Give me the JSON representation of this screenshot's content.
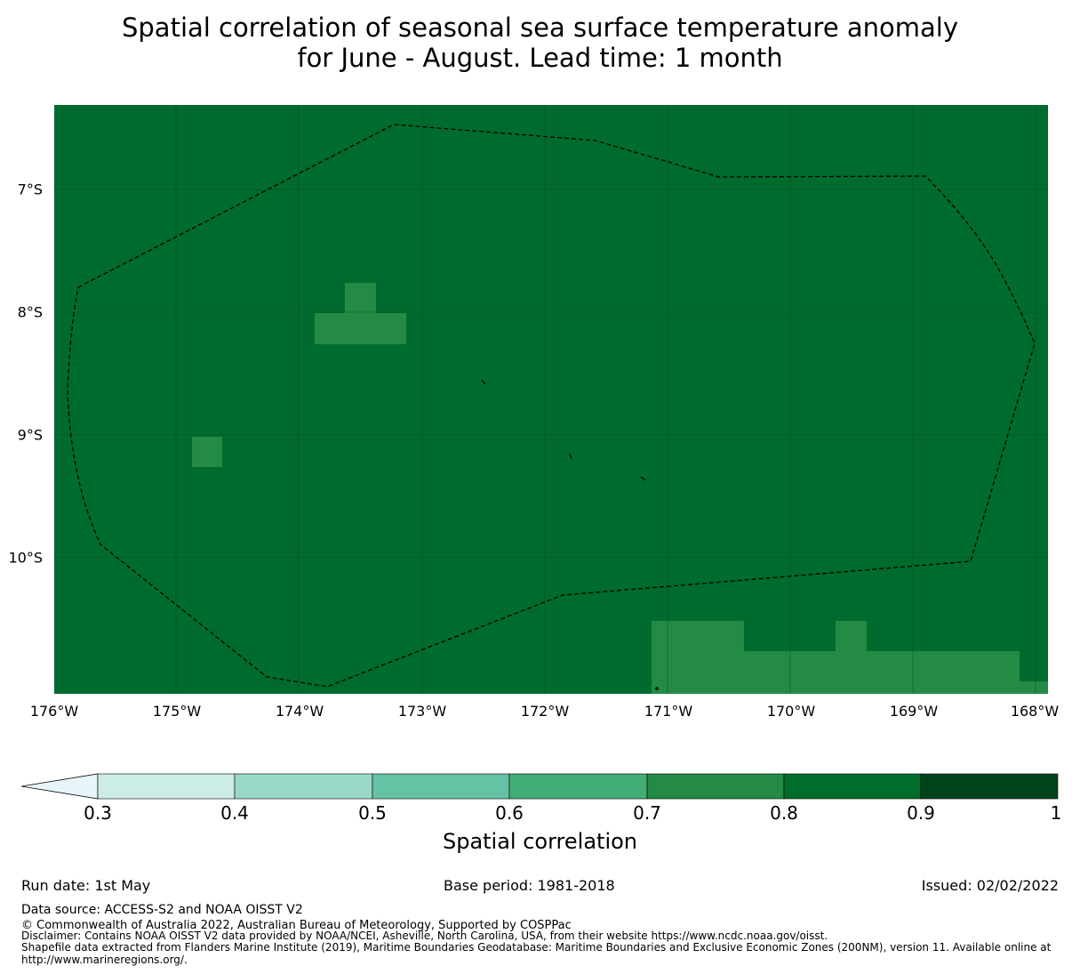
{
  "title": {
    "line1": "Spatial correlation of seasonal sea surface temperature anomaly",
    "line2": "for June - August. Lead time: 1 month"
  },
  "map": {
    "background_color": "#006b2e",
    "patch_color": "#238b45",
    "lat_labels": [
      "7°S",
      "8°S",
      "9°S",
      "10°S"
    ],
    "lon_labels": [
      "176°W",
      "175°W",
      "174°W",
      "173°W",
      "172°W",
      "171°W",
      "170°W",
      "169°W",
      "168°W"
    ]
  },
  "colorbar": {
    "label": "Spatial correlation",
    "ticks": [
      "0.3",
      "0.4",
      "0.5",
      "0.6",
      "0.7",
      "0.8",
      "0.9",
      "1"
    ],
    "colors": [
      "#e5f5f9",
      "#ccece6",
      "#99d8c9",
      "#66c2a4",
      "#41ae76",
      "#238b45",
      "#006d2c",
      "#00441b"
    ]
  },
  "footer": {
    "run_date": "Run date: 1st May",
    "base_period": "Base period: 1981-2018",
    "issued": "Issued: 02/02/2022",
    "data_source": "Data source: ACCESS-S2 and NOAA OISST V2",
    "copyright": "© Commonwealth of Australia 2022, Australian Bureau of Meteorology, Supported by COSPPac",
    "disclaimer": "Disclaimer: Contains NOAA OISST V2 data provided by NOAA/NCEI, Asheville, North Carolina, USA, from their website https://www.ncdc.noaa.gov/oisst.",
    "shapefile_1": "Shapefile data extracted from Flanders Marine Institute (2019), Maritime Boundaries Geodatabase: Maritime Boundaries and Exclusive Economic Zones (200NM), version 11. Available online at",
    "shapefile_2": "http://www.marineregions.org/."
  }
}
